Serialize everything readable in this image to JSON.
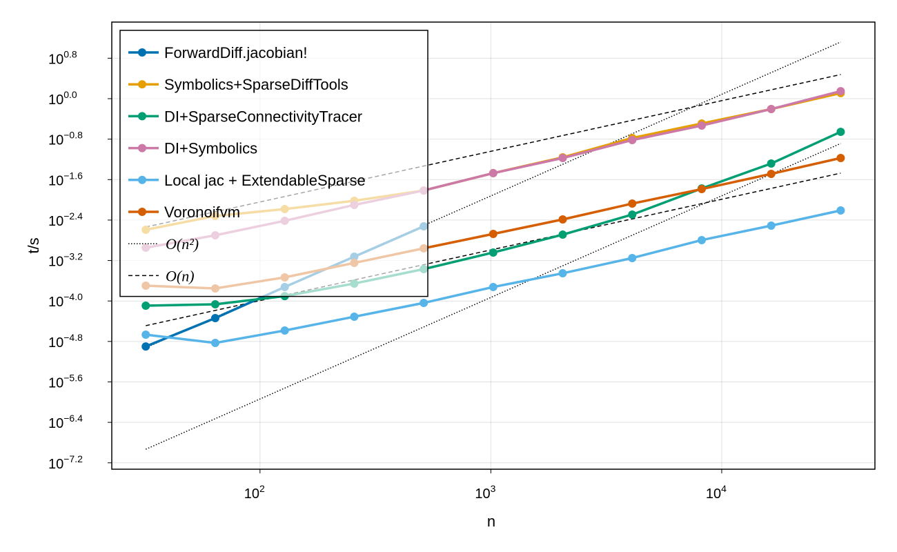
{
  "chart_data": {
    "type": "line",
    "xlabel": "n",
    "ylabel": "t/s",
    "xscale": "log",
    "yscale": "log",
    "grid": true,
    "legend": "top-left",
    "x": [
      32,
      64,
      128,
      256,
      512,
      1024,
      2048,
      4096,
      8192,
      16384,
      32768
    ],
    "xlim": [
      22.8,
      46100
    ],
    "xticks": [
      {
        "value": 100,
        "label": "10^2"
      },
      {
        "value": 1000,
        "label": "10^3"
      },
      {
        "value": 10000,
        "label": "10^4"
      }
    ],
    "ylim": [
      4.72e-08,
      32.7
    ],
    "yticks": [
      {
        "value": 6.30957,
        "label": "10^0.8"
      },
      {
        "value": 1,
        "label": "10^0.0"
      },
      {
        "value": 0.158489,
        "label": "10^−0.8"
      },
      {
        "value": 0.0251189,
        "label": "10^−1.6"
      },
      {
        "value": 0.00398107,
        "label": "10^−2.4"
      },
      {
        "value": 0.000630957,
        "label": "10^−3.2"
      },
      {
        "value": 0.0001,
        "label": "10^−4.0"
      },
      {
        "value": 1.58489e-05,
        "label": "10^−4.8"
      },
      {
        "value": 2.51189e-06,
        "label": "10^−5.6"
      },
      {
        "value": 3.98107e-07,
        "label": "10^−6.4"
      },
      {
        "value": 6.30957e-08,
        "label": "10^−7.2"
      }
    ],
    "series": [
      {
        "name": "ForwardDiff.jacobian!",
        "color": "#0072b2",
        "values": [
          1.26e-05,
          4.59e-05,
          0.000189,
          0.000752,
          0.00299,
          null,
          null,
          null,
          null,
          null,
          null
        ]
      },
      {
        "name": "Symbolics+SparseDiffTools",
        "color": "#e69f00",
        "values": [
          0.00256,
          0.0048,
          0.00656,
          0.00957,
          0.0153,
          0.0337,
          0.0692,
          0.167,
          0.323,
          0.624,
          1.29
        ]
      },
      {
        "name": "DI+SparseConnectivityTracer",
        "color": "#009e73",
        "values": [
          8.07e-05,
          8.61e-05,
          0.000125,
          0.000221,
          0.000427,
          0.000908,
          0.00205,
          0.00511,
          0.0168,
          0.0522,
          0.221
        ]
      },
      {
        "name": "DI+Symbolics",
        "color": "#cc79a7",
        "values": [
          0.00113,
          0.00199,
          0.00385,
          0.00793,
          0.0153,
          0.0337,
          0.0671,
          0.152,
          0.294,
          0.624,
          1.41
        ]
      },
      {
        "name": "Local jac + ExtendableSparse",
        "color": "#56b4e9",
        "values": [
          2.16e-05,
          1.48e-05,
          2.61e-05,
          4.89e-05,
          9.16e-05,
          0.000189,
          0.000353,
          0.000706,
          0.0016,
          0.00309,
          0.00617
        ]
      },
      {
        "name": "Voronoifvm",
        "color": "#d55e00",
        "values": [
          0.000201,
          0.000177,
          0.000293,
          0.000566,
          0.0011,
          0.00212,
          0.0041,
          0.00843,
          0.0163,
          0.0326,
          0.0671
        ]
      }
    ],
    "reference_lines": [
      {
        "name": "O(n²)",
        "style": "dotted",
        "color": "#000000",
        "x": [
          32,
          32768
        ],
        "lines": [
          [
            1.19e-05,
            13.2
          ],
          [
            1.17e-07,
            0.13
          ]
        ]
      },
      {
        "name": "O(n)",
        "style": "dashed",
        "color": "#000000",
        "x": [
          32,
          32768
        ],
        "lines": [
          [
            0.0029,
            3.0
          ],
          [
            3.25e-05,
            0.0337
          ]
        ]
      }
    ]
  }
}
